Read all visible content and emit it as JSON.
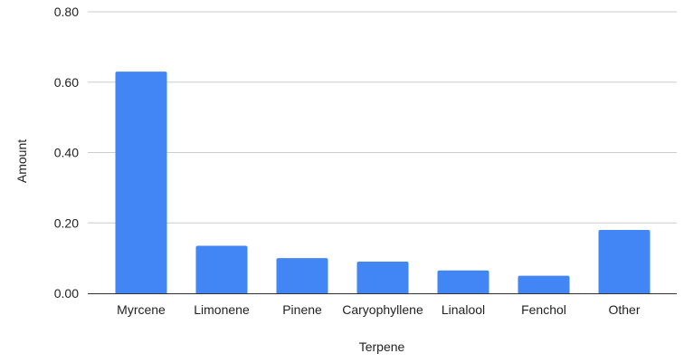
{
  "chart_data": {
    "type": "bar",
    "title": "",
    "xlabel": "Terpene",
    "ylabel": "Amount",
    "categories": [
      "Myrcene",
      "Limonene",
      "Pinene",
      "Caryophyllene",
      "Linalool",
      "Fenchol",
      "Other"
    ],
    "values": [
      0.63,
      0.135,
      0.1,
      0.09,
      0.065,
      0.05,
      0.18
    ],
    "ylim": [
      0,
      0.8
    ],
    "yticks": [
      0,
      0.2,
      0.4,
      0.6,
      0.8
    ],
    "ytick_labels": [
      "0.00",
      "0.20",
      "0.40",
      "0.60",
      "0.80"
    ],
    "grid": true,
    "legend": "none",
    "bar_color": "#4285f4"
  }
}
